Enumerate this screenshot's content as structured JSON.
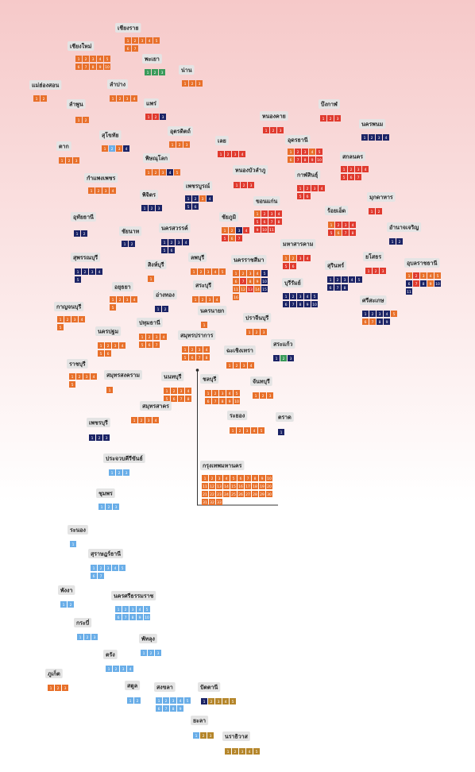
{
  "provinces": [
    {
      "name": "เชียงราย",
      "seats": [
        1,
        2,
        3,
        4,
        5,
        6,
        7
      ],
      "colors": [
        "#e8702a",
        "#e8702a",
        "#e8702a",
        "#e8702a",
        "#e8702a",
        "#e8702a",
        "#e8702a"
      ]
    },
    {
      "name": "เชียงใหม่",
      "seats": [
        1,
        2,
        3,
        4,
        5,
        6,
        7,
        8,
        9,
        10
      ],
      "colors": [
        "#e8702a",
        "#e8702a",
        "#e8702a",
        "#e8702a",
        "#e8702a",
        "#e8702a",
        "#e8702a",
        "#e8702a",
        "#e8702a",
        "#e8702a"
      ]
    },
    {
      "name": "พะเยา",
      "seats": [
        1,
        2,
        3
      ],
      "colors": [
        "#3a9a5a",
        "#3a9a5a",
        "#3a9a5a"
      ]
    },
    {
      "name": "น่าน",
      "seats": [
        1,
        2,
        3
      ],
      "colors": [
        "#e8702a",
        "#e8702a",
        "#e8702a"
      ]
    },
    {
      "name": "แม่ฮ่องสอน",
      "seats": [
        1,
        2
      ],
      "colors": [
        "#e8702a",
        "#e8702a"
      ]
    },
    {
      "name": "ลำปาง",
      "seats": [
        1,
        2,
        3,
        4
      ],
      "colors": [
        "#e8702a",
        "#e8702a",
        "#e8702a",
        "#e8702a"
      ]
    },
    {
      "name": "ลำพูน",
      "seats": [
        1,
        2
      ],
      "colors": [
        "#e8702a",
        "#e8702a"
      ]
    },
    {
      "name": "แพร่",
      "seats": [
        1,
        2,
        3
      ],
      "colors": [
        "#e03a2e",
        "#e03a2e",
        "#1c2466"
      ]
    },
    {
      "name": "อุตรดิตถ์",
      "seats": [
        1,
        2,
        3
      ],
      "colors": [
        "#e8702a",
        "#e8702a",
        "#e8702a"
      ]
    },
    {
      "name": "สุโขทัย",
      "seats": [
        1,
        2,
        3,
        4
      ],
      "colors": [
        "#e8702a",
        "#6aaee8",
        "#e8702a",
        "#1c2466"
      ]
    },
    {
      "name": "ตาก",
      "seats": [
        1,
        2,
        3
      ],
      "colors": [
        "#e8702a",
        "#e8702a",
        "#e8702a"
      ]
    },
    {
      "name": "พิษณุโลก",
      "seats": [
        1,
        2,
        3,
        4,
        5
      ],
      "colors": [
        "#e8702a",
        "#e8702a",
        "#e8702a",
        "#1c2466",
        "#e8702a"
      ]
    },
    {
      "name": "เลย",
      "seats": [
        1,
        2,
        3,
        4
      ],
      "colors": [
        "#e03a2e",
        "#e03a2e",
        "#e03a2e",
        "#e03a2e"
      ]
    },
    {
      "name": "หนองคาย",
      "seats": [
        1,
        2,
        3
      ],
      "colors": [
        "#e03a2e",
        "#e03a2e",
        "#e03a2e"
      ]
    },
    {
      "name": "บึงกาฬ",
      "seats": [
        1,
        2,
        3
      ],
      "colors": [
        "#e03a2e",
        "#e03a2e",
        "#e03a2e"
      ]
    },
    {
      "name": "อุดรธานี",
      "seats": [
        1,
        2,
        3,
        4,
        5,
        6,
        7,
        8,
        9,
        10
      ],
      "colors": [
        "#e8702a",
        "#e03a2e",
        "#e03a2e",
        "#e8702a",
        "#e03a2e",
        "#e8702a",
        "#e03a2e",
        "#e03a2e",
        "#e03a2e",
        "#e03a2e"
      ]
    },
    {
      "name": "นครพนม",
      "seats": [
        1,
        2,
        3,
        4
      ],
      "colors": [
        "#1c2466",
        "#1c2466",
        "#1c2466",
        "#1c2466"
      ]
    },
    {
      "name": "สกลนคร",
      "seats": [
        1,
        2,
        3,
        4,
        5,
        6,
        7
      ],
      "colors": [
        "#e03a2e",
        "#e03a2e",
        "#e03a2e",
        "#e03a2e",
        "#e03a2e",
        "#e03a2e",
        "#e03a2e"
      ]
    },
    {
      "name": "หนองบัวลำภู",
      "seats": [
        1,
        2,
        3
      ],
      "colors": [
        "#e03a2e",
        "#e03a2e",
        "#e03a2e"
      ]
    },
    {
      "name": "กำแพงเพชร",
      "seats": [
        1,
        2,
        3,
        4
      ],
      "colors": [
        "#e8702a",
        "#e8702a",
        "#e8702a",
        "#e8702a"
      ]
    },
    {
      "name": "กาฬสินธุ์",
      "seats": [
        1,
        2,
        3,
        4,
        5,
        6
      ],
      "colors": [
        "#e03a2e",
        "#e03a2e",
        "#e03a2e",
        "#e03a2e",
        "#e03a2e",
        "#e03a2e"
      ]
    },
    {
      "name": "เพชรบูรณ์",
      "seats": [
        1,
        2,
        3,
        4,
        5,
        6
      ],
      "colors": [
        "#1c2466",
        "#1c2466",
        "#e8702a",
        "#1c2466",
        "#1c2466",
        "#1c2466"
      ]
    },
    {
      "name": "พิจิตร",
      "seats": [
        1,
        2,
        3
      ],
      "colors": [
        "#1c2466",
        "#1c2466",
        "#1c2466"
      ]
    },
    {
      "name": "มุกดาหาร",
      "seats": [
        1,
        2
      ],
      "colors": [
        "#e03a2e",
        "#e03a2e"
      ]
    },
    {
      "name": "ขอนแก่น",
      "seats": [
        1,
        2,
        3,
        4,
        5,
        6,
        7,
        8,
        9,
        10,
        11
      ],
      "colors": [
        "#e8702a",
        "#e03a2e",
        "#e03a2e",
        "#e03a2e",
        "#e03a2e",
        "#e03a2e",
        "#e03a2e",
        "#e03a2e",
        "#e03a2e",
        "#e03a2e",
        "#e03a2e"
      ]
    },
    {
      "name": "อุทัยธานี",
      "seats": [
        1,
        2
      ],
      "colors": [
        "#1c2466",
        "#1c2466"
      ]
    },
    {
      "name": "ร้อยเอ็ด",
      "seats": [
        1,
        2,
        3,
        4,
        5,
        6,
        7,
        8
      ],
      "colors": [
        "#e8702a",
        "#e03a2e",
        "#e03a2e",
        "#e03a2e",
        "#e03a2e",
        "#e8702a",
        "#e03a2e",
        "#e03a2e"
      ]
    },
    {
      "name": "ชัยภูมิ",
      "seats": [
        1,
        2,
        3,
        4,
        5,
        6,
        7
      ],
      "colors": [
        "#e8702a",
        "#e8702a",
        "#1c2466",
        "#e03a2e",
        "#e03a2e",
        "#e8702a",
        "#e03a2e"
      ]
    },
    {
      "name": "อำนาจเจริญ",
      "seats": [
        1,
        2
      ],
      "colors": [
        "#1c2466",
        "#1c2466"
      ]
    },
    {
      "name": "ชัยนาท",
      "seats": [
        1,
        2
      ],
      "colors": [
        "#1c2466",
        "#1c2466"
      ]
    },
    {
      "name": "นครสวรรค์",
      "seats": [
        1,
        2,
        3,
        4,
        5,
        6
      ],
      "colors": [
        "#1c2466",
        "#1c2466",
        "#1c2466",
        "#1c2466",
        "#1c2466",
        "#1c2466"
      ]
    },
    {
      "name": "มหาสารคาม",
      "seats": [
        1,
        2,
        3,
        4,
        5,
        6
      ],
      "colors": [
        "#e8702a",
        "#e8702a",
        "#e03a2e",
        "#e03a2e",
        "#e03a2e",
        "#e03a2e"
      ]
    },
    {
      "name": "สุพรรณบุรี",
      "seats": [
        1,
        2,
        3,
        4,
        5
      ],
      "colors": [
        "#1c2466",
        "#1c2466",
        "#1c2466",
        "#1c2466",
        "#1c2466"
      ]
    },
    {
      "name": "สิงห์บุรี",
      "seats": [
        1
      ],
      "colors": [
        "#e8702a"
      ]
    },
    {
      "name": "ลพบุรี",
      "seats": [
        1,
        2,
        3,
        4,
        5
      ],
      "colors": [
        "#e8702a",
        "#e8702a",
        "#e8702a",
        "#e8702a",
        "#e8702a"
      ]
    },
    {
      "name": "นครราชสีมา",
      "seats": [
        1,
        2,
        3,
        4,
        5,
        6,
        7,
        8,
        9,
        10,
        11,
        12,
        13,
        14,
        15,
        16
      ],
      "colors": [
        "#e8702a",
        "#e8702a",
        "#e8702a",
        "#e8702a",
        "#1c2466",
        "#e8702a",
        "#e03a2e",
        "#e8702a",
        "#e8702a",
        "#1c2466",
        "#e8702a",
        "#e8702a",
        "#e03a2e",
        "#e8702a",
        "#1c2466",
        "#e8702a"
      ]
    },
    {
      "name": "ยโสธร",
      "seats": [
        1,
        2,
        3
      ],
      "colors": [
        "#e03a2e",
        "#e03a2e",
        "#e03a2e"
      ]
    },
    {
      "name": "สุรินทร์",
      "seats": [
        1,
        2,
        3,
        4,
        5,
        6,
        7,
        8
      ],
      "colors": [
        "#1c2466",
        "#1c2466",
        "#1c2466",
        "#1c2466",
        "#1c2466",
        "#1c2466",
        "#1c2466",
        "#1c2466"
      ]
    },
    {
      "name": "อุบลราชธานี",
      "seats": [
        1,
        2,
        3,
        4,
        5,
        6,
        7,
        8,
        9,
        10,
        11
      ],
      "colors": [
        "#e8702a",
        "#e03a2e",
        "#e8702a",
        "#e8702a",
        "#e8702a",
        "#1c2466",
        "#e03a2e",
        "#1c2466",
        "#e8702a",
        "#1c2466",
        "#1c2466"
      ]
    },
    {
      "name": "อยุธยา",
      "seats": [
        1,
        2,
        3,
        4,
        5
      ],
      "colors": [
        "#e8702a",
        "#e8702a",
        "#e8702a",
        "#e8702a",
        "#e8702a"
      ]
    },
    {
      "name": "บุรีรัมย์",
      "seats": [
        1,
        2,
        3,
        4,
        5,
        6,
        7,
        8,
        9,
        10
      ],
      "colors": [
        "#1c2466",
        "#1c2466",
        "#1c2466",
        "#1c2466",
        "#1c2466",
        "#1c2466",
        "#1c2466",
        "#1c2466",
        "#1c2466",
        "#1c2466"
      ]
    },
    {
      "name": "สระบุรี",
      "seats": [
        1,
        2,
        3,
        4
      ],
      "colors": [
        "#e8702a",
        "#e8702a",
        "#e8702a",
        "#e8702a"
      ]
    },
    {
      "name": "อ่างทอง",
      "seats": [
        1,
        2
      ],
      "colors": [
        "#1c2466",
        "#1c2466"
      ]
    },
    {
      "name": "กาญจนบุรี",
      "seats": [
        1,
        2,
        3,
        4,
        5
      ],
      "colors": [
        "#e8702a",
        "#e8702a",
        "#e8702a",
        "#e8702a",
        "#e8702a"
      ]
    },
    {
      "name": "ศรีสะเกษ",
      "seats": [
        1,
        2,
        3,
        4,
        5,
        6,
        7,
        8,
        9
      ],
      "colors": [
        "#1c2466",
        "#1c2466",
        "#1c2466",
        "#1c2466",
        "#e8702a",
        "#e8702a",
        "#e8702a",
        "#1c2466",
        "#1c2466"
      ]
    },
    {
      "name": "นครนายก",
      "seats": [
        1
      ],
      "colors": [
        "#e8702a"
      ]
    },
    {
      "name": "ปทุมธานี",
      "seats": [
        1,
        2,
        3,
        4,
        5,
        6,
        7
      ],
      "colors": [
        "#e8702a",
        "#e8702a",
        "#e8702a",
        "#e8702a",
        "#e8702a",
        "#e8702a",
        "#e8702a"
      ]
    },
    {
      "name": "นครปฐม",
      "seats": [
        1,
        2,
        3,
        4,
        5,
        6
      ],
      "colors": [
        "#e8702a",
        "#e8702a",
        "#e8702a",
        "#e8702a",
        "#e8702a",
        "#e8702a"
      ]
    },
    {
      "name": "ปราจีนบุรี",
      "seats": [
        1,
        2,
        3
      ],
      "colors": [
        "#e8702a",
        "#e8702a",
        "#e8702a"
      ]
    },
    {
      "name": "สมุทรปราการ",
      "seats": [
        1,
        2,
        3,
        4,
        5,
        6,
        7,
        8
      ],
      "colors": [
        "#e8702a",
        "#e8702a",
        "#e8702a",
        "#e8702a",
        "#e8702a",
        "#e8702a",
        "#e8702a",
        "#e8702a"
      ]
    },
    {
      "name": "สระแก้ว",
      "seats": [
        1,
        2,
        3
      ],
      "colors": [
        "#1c2466",
        "#3a9a5a",
        "#1c2466"
      ]
    },
    {
      "name": "ฉะเชิงเทรา",
      "seats": [
        1,
        2,
        3,
        4
      ],
      "colors": [
        "#e8702a",
        "#e8702a",
        "#e8702a",
        "#e8702a"
      ]
    },
    {
      "name": "ราชบุรี",
      "seats": [
        1,
        2,
        3,
        4,
        5
      ],
      "colors": [
        "#e8702a",
        "#e8702a",
        "#e8702a",
        "#e8702a",
        "#e8702a"
      ]
    },
    {
      "name": "สมุทรสงคราม",
      "seats": [
        1
      ],
      "colors": [
        "#e8702a"
      ]
    },
    {
      "name": "นนทบุรี",
      "seats": [
        1,
        2,
        3,
        4,
        5,
        6,
        7,
        8
      ],
      "colors": [
        "#e8702a",
        "#e8702a",
        "#e8702a",
        "#e8702a",
        "#e8702a",
        "#e8702a",
        "#e8702a",
        "#e8702a"
      ]
    },
    {
      "name": "ชลบุรี",
      "seats": [
        1,
        2,
        3,
        4,
        5,
        6,
        7,
        8,
        9,
        10
      ],
      "colors": [
        "#e8702a",
        "#e8702a",
        "#e8702a",
        "#e8702a",
        "#e8702a",
        "#e8702a",
        "#e8702a",
        "#e8702a",
        "#e8702a",
        "#e8702a"
      ]
    },
    {
      "name": "จันทบุรี",
      "seats": [
        1,
        2,
        3
      ],
      "colors": [
        "#e8702a",
        "#e8702a",
        "#e8702a"
      ]
    },
    {
      "name": "สมุทรสาคร",
      "seats": [
        1,
        2,
        3,
        4
      ],
      "colors": [
        "#e8702a",
        "#e8702a",
        "#e8702a",
        "#e8702a"
      ]
    },
    {
      "name": "ระยอง",
      "seats": [
        1,
        2,
        3,
        4,
        5
      ],
      "colors": [
        "#e8702a",
        "#e8702a",
        "#e8702a",
        "#e8702a",
        "#e8702a"
      ]
    },
    {
      "name": "ตราด",
      "seats": [
        1
      ],
      "colors": [
        "#1c2466"
      ]
    },
    {
      "name": "เพชรบุรี",
      "seats": [
        1,
        2,
        3
      ],
      "colors": [
        "#1c2466",
        "#1c2466",
        "#1c2466"
      ]
    },
    {
      "name": "ประจวบคีรีขันธ์",
      "seats": [
        1,
        2,
        3
      ],
      "colors": [
        "#6aaee8",
        "#6aaee8",
        "#6aaee8"
      ]
    },
    {
      "name": "กรุงเทพมหานคร",
      "seats": [
        1,
        2,
        3,
        4,
        5,
        6,
        7,
        8,
        9,
        10,
        11,
        12,
        13,
        14,
        15,
        16,
        17,
        18,
        19,
        20,
        21,
        22,
        23,
        24,
        25,
        26,
        27,
        28,
        29,
        30,
        31,
        32,
        33
      ],
      "colors": [
        "#e8702a",
        "#e8702a",
        "#e8702a",
        "#e8702a",
        "#e8702a",
        "#e8702a",
        "#e8702a",
        "#e8702a",
        "#e8702a",
        "#e8702a",
        "#e8702a",
        "#e8702a",
        "#e8702a",
        "#e8702a",
        "#e8702a",
        "#e8702a",
        "#e8702a",
        "#e8702a",
        "#e8702a",
        "#e8702a",
        "#e8702a",
        "#e8702a",
        "#e8702a",
        "#e8702a",
        "#e8702a",
        "#e8702a",
        "#e8702a",
        "#e8702a",
        "#e8702a",
        "#e8702a",
        "#e8702a",
        "#e8702a",
        "#e8702a"
      ]
    },
    {
      "name": "ชุมพร",
      "seats": [
        1,
        2,
        3
      ],
      "colors": [
        "#6aaee8",
        "#6aaee8",
        "#6aaee8"
      ]
    },
    {
      "name": "ระนอง",
      "seats": [
        1
      ],
      "colors": [
        "#6aaee8"
      ]
    },
    {
      "name": "สุราษฎร์ธานี",
      "seats": [
        1,
        2,
        3,
        4,
        5,
        6,
        7
      ],
      "colors": [
        "#6aaee8",
        "#6aaee8",
        "#6aaee8",
        "#6aaee8",
        "#6aaee8",
        "#6aaee8",
        "#6aaee8"
      ]
    },
    {
      "name": "พังงา",
      "seats": [
        1,
        2
      ],
      "colors": [
        "#6aaee8",
        "#6aaee8"
      ]
    },
    {
      "name": "นครศรีธรรมราช",
      "seats": [
        1,
        2,
        3,
        4,
        5,
        6,
        7,
        8,
        9,
        10
      ],
      "colors": [
        "#6aaee8",
        "#6aaee8",
        "#6aaee8",
        "#6aaee8",
        "#6aaee8",
        "#6aaee8",
        "#6aaee8",
        "#6aaee8",
        "#6aaee8",
        "#6aaee8"
      ]
    },
    {
      "name": "กระบี่",
      "seats": [
        1,
        2,
        3
      ],
      "colors": [
        "#6aaee8",
        "#6aaee8",
        "#6aaee8"
      ]
    },
    {
      "name": "พัทลุง",
      "seats": [
        1,
        2,
        3
      ],
      "colors": [
        "#6aaee8",
        "#6aaee8",
        "#6aaee8"
      ]
    },
    {
      "name": "ตรัง",
      "seats": [
        1,
        2,
        3,
        4
      ],
      "colors": [
        "#6aaee8",
        "#6aaee8",
        "#6aaee8",
        "#6aaee8"
      ]
    },
    {
      "name": "ภูเก็ต",
      "seats": [
        1,
        2,
        3
      ],
      "colors": [
        "#e8702a",
        "#e8702a",
        "#e8702a"
      ]
    },
    {
      "name": "สตูล",
      "seats": [
        1,
        2
      ],
      "colors": [
        "#6aaee8",
        "#6aaee8"
      ]
    },
    {
      "name": "สงขลา",
      "seats": [
        1,
        2,
        3,
        4,
        5,
        6,
        7,
        8,
        9
      ],
      "colors": [
        "#6aaee8",
        "#6aaee8",
        "#6aaee8",
        "#6aaee8",
        "#6aaee8",
        "#6aaee8",
        "#6aaee8",
        "#6aaee8",
        "#6aaee8"
      ]
    },
    {
      "name": "ปัตตานี",
      "seats": [
        1,
        2,
        3,
        4,
        5
      ],
      "colors": [
        "#1c2466",
        "#b5862b",
        "#b5862b",
        "#b5862b",
        "#b5862b"
      ]
    },
    {
      "name": "ยะลา",
      "seats": [
        1,
        2,
        3
      ],
      "colors": [
        "#6aaee8",
        "#b5862b",
        "#b5862b"
      ]
    },
    {
      "name": "นราธิวาส",
      "seats": [
        1,
        2,
        3,
        4,
        5
      ],
      "colors": [
        "#b5862b",
        "#b5862b",
        "#b5862b",
        "#b5862b",
        "#b5862b"
      ]
    }
  ]
}
